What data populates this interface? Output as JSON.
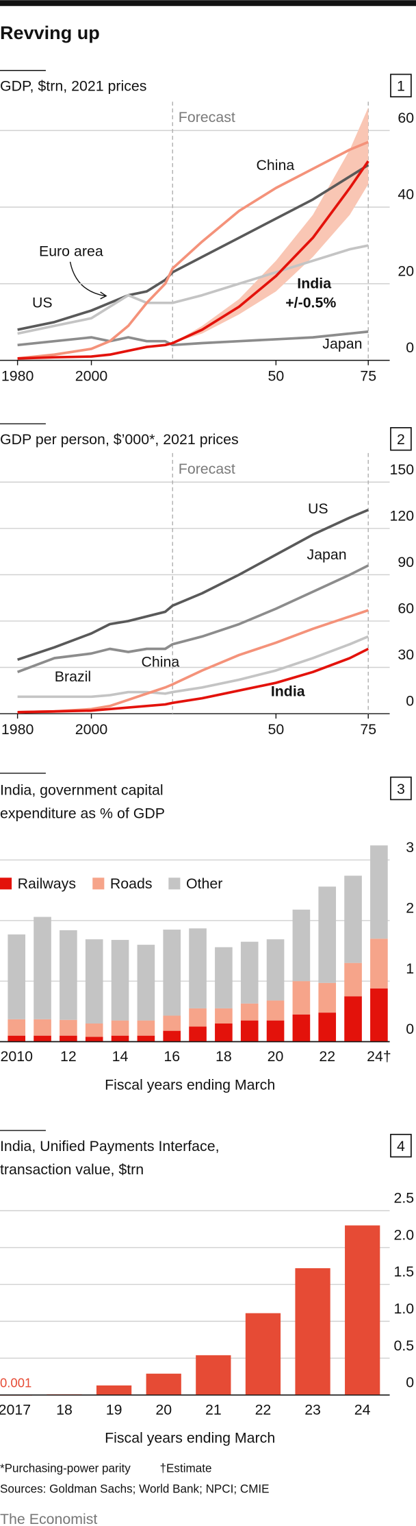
{
  "header": {
    "title": "Revving up"
  },
  "chart_data": [
    {
      "type": "line",
      "number": 1,
      "title": "GDP, $trn, 2021 prices",
      "forecast_label": "Forecast",
      "forecast_start": 2022,
      "x": [
        1980,
        1990,
        2000,
        2005,
        2010,
        2015,
        2020,
        2022,
        2030,
        2040,
        2050,
        2060,
        2070,
        2075
      ],
      "xlim": [
        1980,
        2075
      ],
      "xticks": [
        1980,
        2000,
        {
          "value": 2050,
          "label": "50"
        },
        {
          "value": 2075,
          "label": "75"
        }
      ],
      "ylim": [
        0,
        66
      ],
      "yticks": [
        0,
        20,
        40,
        60
      ],
      "grid": true,
      "series": [
        {
          "name": "US",
          "color": "#595959",
          "values": [
            8,
            10,
            13,
            15,
            17,
            18,
            21,
            23,
            27,
            32,
            37,
            42,
            48,
            51
          ]
        },
        {
          "name": "Euro area",
          "color": "#c4c4c4",
          "values": [
            7,
            9,
            11,
            14,
            17,
            15,
            15,
            15,
            17,
            20,
            23,
            26,
            29,
            30
          ]
        },
        {
          "name": "Japan",
          "color": "#8c8c8c",
          "values": [
            4,
            5,
            6,
            5,
            6,
            5,
            5,
            4,
            4.5,
            5,
            5.5,
            6,
            7,
            7.5
          ]
        },
        {
          "name": "China",
          "color": "#f4927a",
          "values": [
            0.5,
            1.5,
            3,
            5,
            9,
            15,
            20,
            24,
            31,
            39,
            45,
            50,
            55,
            57
          ]
        },
        {
          "name": "India",
          "color": "#e3120b",
          "values": [
            0.5,
            0.8,
            1,
            1.5,
            2.5,
            3.5,
            4,
            4.5,
            8,
            14,
            22,
            32,
            45,
            52
          ]
        }
      ],
      "band": {
        "label": "+/-0.5%",
        "color": "#f9c6b4",
        "x": [
          2022,
          2030,
          2040,
          2050,
          2060,
          2070,
          2075
        ],
        "low": [
          4.5,
          7,
          12,
          18,
          27,
          38,
          46
        ],
        "high": [
          4.5,
          9,
          16,
          26,
          38,
          55,
          66
        ]
      }
    },
    {
      "type": "line",
      "number": 2,
      "title": "GDP per person, $’000*, 2021 prices",
      "forecast_label": "Forecast",
      "forecast_start": 2022,
      "x": [
        1980,
        1990,
        2000,
        2005,
        2010,
        2015,
        2020,
        2022,
        2030,
        2040,
        2050,
        2060,
        2070,
        2075
      ],
      "xlim": [
        1980,
        2075
      ],
      "xticks": [
        1980,
        2000,
        {
          "value": 2050,
          "label": "50"
        },
        {
          "value": 2075,
          "label": "75"
        }
      ],
      "ylim": [
        0,
        165
      ],
      "yticks": [
        0,
        30,
        60,
        90,
        120,
        150
      ],
      "grid": true,
      "series": [
        {
          "name": "US",
          "color": "#595959",
          "values": [
            35,
            43,
            52,
            58,
            60,
            63,
            66,
            70,
            78,
            90,
            103,
            116,
            127,
            132
          ]
        },
        {
          "name": "Japan",
          "color": "#8c8c8c",
          "values": [
            27,
            36,
            39,
            42,
            40,
            42,
            42,
            45,
            50,
            58,
            68,
            79,
            90,
            96
          ]
        },
        {
          "name": "Brazil",
          "color": "#c4c4c4",
          "values": [
            11,
            11,
            11,
            12,
            14,
            14,
            13,
            14,
            17,
            22,
            28,
            36,
            45,
            50
          ]
        },
        {
          "name": "China",
          "color": "#f4927a",
          "values": [
            1,
            1.5,
            3,
            5,
            9,
            13,
            17,
            19,
            28,
            38,
            46,
            55,
            63,
            67
          ]
        },
        {
          "name": "India",
          "color": "#e3120b",
          "values": [
            1,
            1.5,
            2,
            3,
            4,
            5,
            6,
            7,
            10,
            15,
            20,
            27,
            36,
            42
          ]
        }
      ]
    },
    {
      "type": "bar",
      "stacked": true,
      "number": 3,
      "title": "India, government capital expenditure as % of GDP",
      "x_label": "Fiscal years ending March",
      "categories": [
        "2010",
        null,
        "12",
        null,
        "14",
        null,
        "16",
        null,
        "18",
        null,
        "20",
        null,
        "22",
        null,
        "24†"
      ],
      "ylim": [
        0,
        3.4
      ],
      "yticks": [
        0,
        1,
        2,
        3
      ],
      "grid": true,
      "series": [
        {
          "name": "Railways",
          "color": "#e3120b",
          "values": [
            0.1,
            0.1,
            0.1,
            0.08,
            0.1,
            0.1,
            0.18,
            0.25,
            0.3,
            0.35,
            0.35,
            0.45,
            0.48,
            0.75,
            0.88
          ]
        },
        {
          "name": "Roads",
          "color": "#f6a48a",
          "values": [
            0.27,
            0.27,
            0.26,
            0.22,
            0.25,
            0.25,
            0.25,
            0.3,
            0.25,
            0.28,
            0.33,
            0.55,
            0.49,
            0.55,
            0.82
          ]
        },
        {
          "name": "Other",
          "color": "#c4c4c4",
          "values": [
            1.4,
            1.69,
            1.48,
            1.39,
            1.33,
            1.25,
            1.42,
            1.32,
            1.01,
            1.02,
            1.01,
            1.18,
            1.59,
            1.44,
            1.54
          ]
        }
      ]
    },
    {
      "type": "bar",
      "number": 4,
      "title": "India, Unified Payments Interface, transaction value, $trn",
      "x_label": "Fiscal years ending March",
      "categories": [
        "2017",
        "18",
        "19",
        "20",
        "21",
        "22",
        "23",
        "24"
      ],
      "values": [
        0.001,
        0.01,
        0.13,
        0.29,
        0.54,
        1.11,
        1.72,
        2.3
      ],
      "color": "#e64b35",
      "ylim": [
        0,
        2.7
      ],
      "yticks": [
        0,
        0.5,
        {
          "value": 1,
          "label": "1.0"
        },
        1.5,
        {
          "value": 2,
          "label": "2.0"
        },
        2.5
      ],
      "grid": true
    }
  ],
  "footer": {
    "notes": [
      "*Purchasing-power parity",
      "†Estimate"
    ],
    "sources": "Sources: Goldman Sachs; World Bank; NPCI; CMIE",
    "brand": "The Economist"
  }
}
